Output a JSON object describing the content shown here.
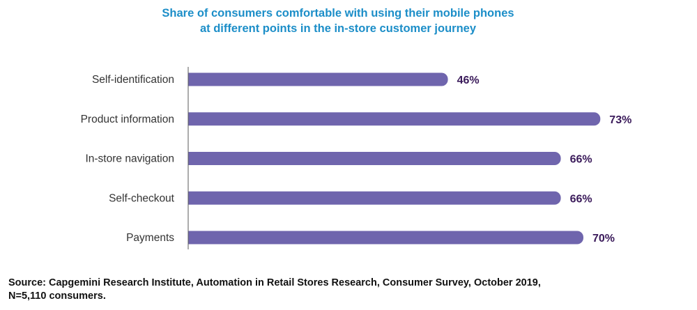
{
  "chart_data": {
    "type": "bar",
    "orientation": "horizontal",
    "title_lines": [
      "Share of consumers comfortable with using their mobile phones",
      "at different points in the in-store customer journey"
    ],
    "categories": [
      "Self-identification",
      "Product information",
      "In-store navigation",
      "Self-checkout",
      "Payments"
    ],
    "values": [
      46,
      73,
      66,
      66,
      70
    ],
    "value_labels": [
      "46%",
      "73%",
      "66%",
      "66%",
      "70%"
    ],
    "unit": "%",
    "xlim": [
      0,
      100
    ],
    "xlabel": "",
    "ylabel": "",
    "grid": false,
    "legend": "none"
  },
  "source": {
    "line1": "Source: Capgemini Research Institute, Automation in Retail Stores Research, Consumer Survey, October 2019,",
    "line2": "N=5,110 consumers."
  },
  "colors": {
    "bar": "#6f65ad",
    "value_label": "#3a1a5a",
    "title": "#1c8ec8",
    "axis": "#5a5a5a",
    "category_label": "#333333"
  }
}
